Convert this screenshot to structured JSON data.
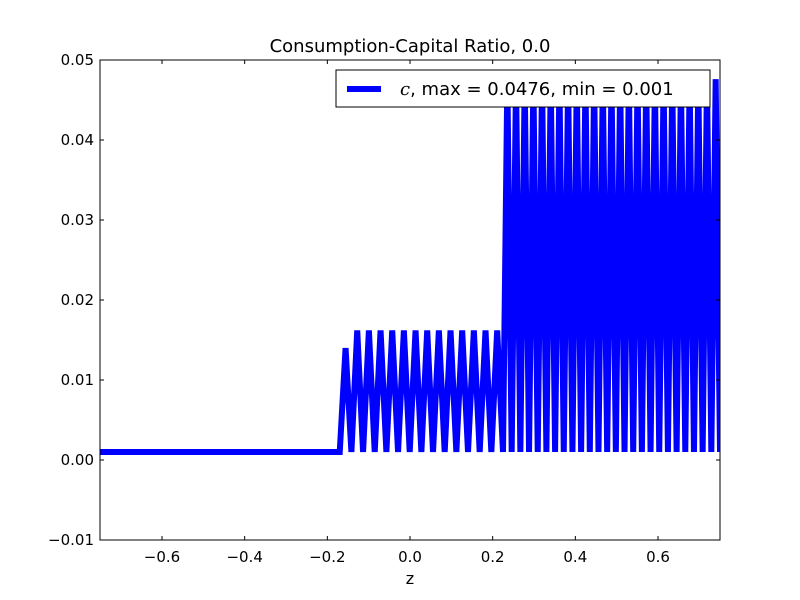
{
  "chart_data": {
    "type": "line",
    "title": "Consumption-Capital Ratio, 0.0",
    "xlabel": "z",
    "ylabel": "",
    "xlim": [
      -0.75,
      0.75
    ],
    "ylim": [
      -0.01,
      0.05
    ],
    "xticks": [
      -0.6,
      -0.4,
      -0.2,
      0.0,
      0.2,
      0.4,
      0.6
    ],
    "xtick_labels": [
      "−0.6",
      "−0.4",
      "−0.2",
      "0.0",
      "0.2",
      "0.4",
      "0.6"
    ],
    "yticks": [
      -0.01,
      0.0,
      0.01,
      0.02,
      0.03,
      0.04,
      0.05
    ],
    "ytick_labels": [
      "−0.01",
      "0.00",
      "0.01",
      "0.02",
      "0.03",
      "0.04",
      "0.05"
    ],
    "grid": false,
    "legend_position": "top-right",
    "series": [
      {
        "name_symbol": "c",
        "name_rest": ", max = 0.0476, min = 0.001",
        "color": "#0000ff",
        "segments": [
          {
            "type": "flat",
            "x_start": -0.75,
            "x_end": -0.17,
            "value": 0.001
          },
          {
            "type": "oscillation",
            "x_start": -0.17,
            "x_end": 0.225,
            "low": 0.001,
            "high": 0.0162,
            "first_peak": 0.014,
            "cycles": 14
          },
          {
            "type": "oscillation",
            "x_start": 0.225,
            "x_end": 0.75,
            "low": 0.001,
            "high": 0.0476,
            "cycles": 25
          }
        ]
      }
    ]
  }
}
